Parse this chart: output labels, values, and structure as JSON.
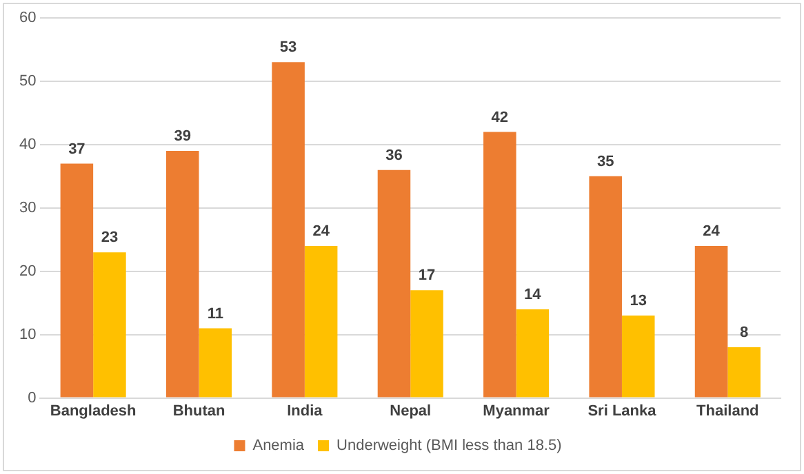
{
  "chart_data": {
    "type": "bar",
    "categories": [
      "Bangladesh",
      "Bhutan",
      "India",
      "Nepal",
      "Myanmar",
      "Sri Lanka",
      "Thailand"
    ],
    "series": [
      {
        "name": "Anemia",
        "color": "#ed7d31",
        "values": [
          37,
          39,
          53,
          36,
          42,
          35,
          24
        ]
      },
      {
        "name": "Underweight (BMI less than 18.5)",
        "color": "#ffc000",
        "values": [
          23,
          11,
          24,
          17,
          14,
          13,
          8
        ]
      }
    ],
    "ylim": [
      0,
      60
    ],
    "yticks": [
      0,
      10,
      20,
      30,
      40,
      50,
      60
    ],
    "grid": "y",
    "legend": "bottom",
    "data_labels": true
  }
}
